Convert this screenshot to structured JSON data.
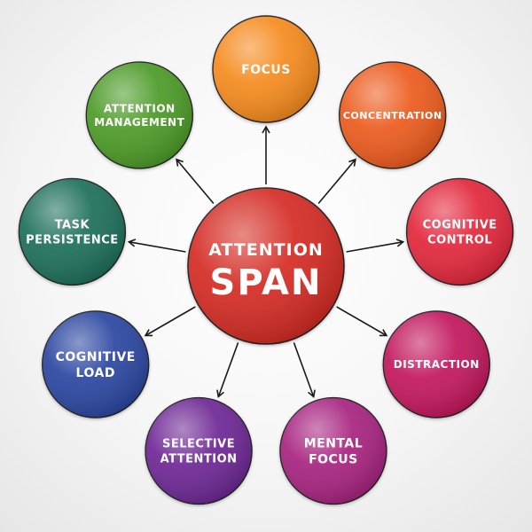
{
  "center": {
    "lines": [
      "ATTENTION",
      "SPAN"
    ],
    "color": "#d42a22"
  },
  "nodes": [
    {
      "id": "focus",
      "lines": [
        "FOCUS"
      ],
      "color": "#f58a1f"
    },
    {
      "id": "concentration",
      "lines": [
        "CONCENTRATION"
      ],
      "color": "#ec5a1c"
    },
    {
      "id": "cognitive-control",
      "lines": [
        "COGNITIVE",
        "CONTROL"
      ],
      "color": "#e2263b"
    },
    {
      "id": "distraction",
      "lines": [
        "DISTRACTION"
      ],
      "color": "#c2185b"
    },
    {
      "id": "mental-focus",
      "lines": [
        "MENTAL",
        "FOCUS"
      ],
      "color": "#a7207f"
    },
    {
      "id": "selective-attention",
      "lines": [
        "SELECTIVE",
        "ATTENTION"
      ],
      "color": "#6d2894"
    },
    {
      "id": "cognitive-load",
      "lines": [
        "COGNITIVE",
        "LOAD"
      ],
      "color": "#2a45a0"
    },
    {
      "id": "task-persistence",
      "lines": [
        "TASK",
        "PERSISTENCE"
      ],
      "color": "#1f6e5a"
    },
    {
      "id": "attention-management",
      "lines": [
        "ATTENTION",
        "MANAGEMENT"
      ],
      "color": "#4c9a27"
    }
  ]
}
